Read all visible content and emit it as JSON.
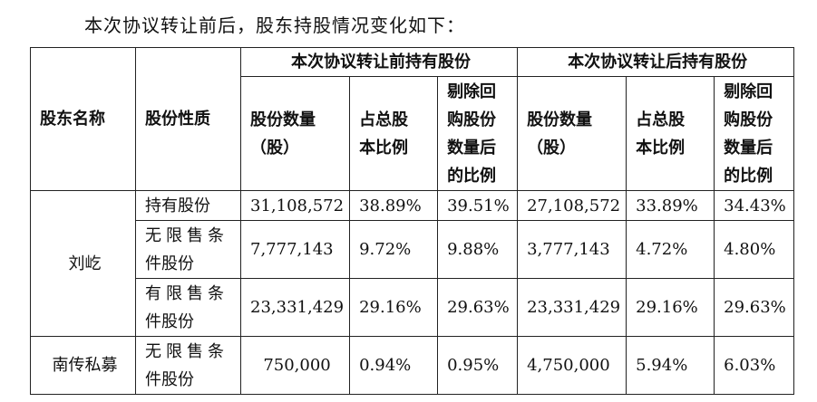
{
  "intro": "本次协议转让前后，股东持股情况变化如下：",
  "header": {
    "shareholder": "股东名称",
    "share_type": "股份性质",
    "group_before": "本次协议转让前持有股份",
    "group_after": "本次协议转让后持有股份",
    "quantity_line1": "股份数量",
    "quantity_line2": "（股）",
    "ratio_line1": "占总股",
    "ratio_line2": "本比例",
    "excl_line1": "剔除回",
    "excl_line2": "购股份",
    "excl_line3": "数量后",
    "excl_line4": "的比例"
  },
  "rows": [
    {
      "holder": "刘屹",
      "type_line1": "持有股份",
      "type_line2": "",
      "before_qty": "31,108,572",
      "before_ratio": "38.89%",
      "before_excl": "39.51%",
      "after_qty": "27,108,572",
      "after_ratio": "33.89%",
      "after_excl": "34.43%"
    },
    {
      "holder": "",
      "type_line1": "无限售条",
      "type_line2": "件股份",
      "before_qty": "7,777,143",
      "before_ratio": "9.72%",
      "before_excl": "9.88%",
      "after_qty": "3,777,143",
      "after_ratio": "4.72%",
      "after_excl": "4.80%"
    },
    {
      "holder": "",
      "type_line1": "有限售条",
      "type_line2": "件股份",
      "before_qty": "23,331,429",
      "before_ratio": "29.16%",
      "before_excl": "29.63%",
      "after_qty": "23,331,429",
      "after_ratio": "29.16%",
      "after_excl": "29.63%"
    },
    {
      "holder": "南传私募",
      "type_line1": "无限售条",
      "type_line2": "件股份",
      "before_qty": "750,000",
      "before_ratio": "0.94%",
      "before_excl": "0.95%",
      "after_qty": "4,750,000",
      "after_ratio": "5.94%",
      "after_excl": "6.03%"
    }
  ]
}
